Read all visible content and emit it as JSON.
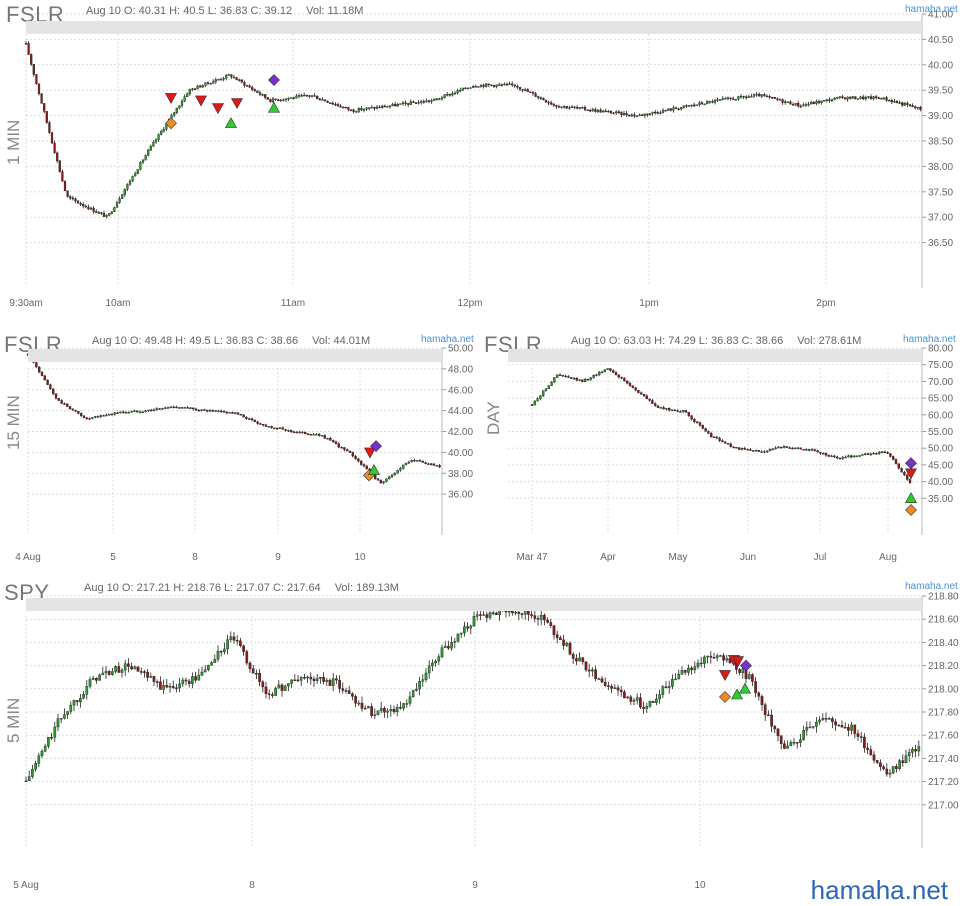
{
  "brand": "hamaha.net",
  "legend": [
    {
      "label": "Open",
      "shape": "diamond",
      "color": "#f08a24"
    },
    {
      "label": "Close",
      "shape": "diamond",
      "color": "#7b2fd0"
    },
    {
      "label": "BUY",
      "shape": "up",
      "color": "#2ecc2e"
    },
    {
      "label": "SELL",
      "shape": "down",
      "color": "#e01818"
    }
  ],
  "panels": {
    "p1": {
      "ticker": "FSLR",
      "ohlc": "Aug 10 O: 40.31 H: 40.5 L: 36.83 C: 39.12",
      "vol": "Vol: 11.18M",
      "timeframe": "1 MIN",
      "brand": "hamaha.net"
    },
    "p2": {
      "ticker": "FSLR",
      "ohlc": "Aug 10 O: 49.48 H: 49.5 L: 36.83 C: 38.66",
      "vol": "Vol: 44.01M",
      "timeframe": "15 MIN",
      "brand": "hamaha.net"
    },
    "p3": {
      "ticker": "FSLR",
      "ohlc": "Aug 10 O: 63.03 H: 74.29 L: 36.83 C: 38.66",
      "vol": "Vol: 278.61M",
      "timeframe": "DAY",
      "brand": "hamaha.net"
    },
    "p4": {
      "ticker": "SPY",
      "ohlc": "Aug 10 O: 217.21 H: 218.76 L: 217.07 C: 217.64",
      "vol": "Vol: 189.13M",
      "timeframe": "5 MIN",
      "brand": "hamaha.net"
    }
  },
  "chart_data": [
    {
      "id": "p1",
      "type": "candlestick",
      "ticker": "FSLR",
      "timeframe": "1 MIN",
      "ylim": [
        36.0,
        41.0
      ],
      "yticks": [
        "36.50",
        "37.00",
        "37.50",
        "38.00",
        "38.50",
        "39.00",
        "39.50",
        "40.00",
        "40.50",
        "41.00"
      ],
      "xticks": [
        "9:30am",
        "10am",
        "11am",
        "12pm",
        "1pm",
        "2pm"
      ],
      "price_path": [
        {
          "x": "9:30am",
          "y": 40.4
        },
        {
          "x": "9:33",
          "y": 37.4
        },
        {
          "x": "9:37",
          "y": 37.0
        },
        {
          "x": "9:45",
          "y": 38.3
        },
        {
          "x": "9:55",
          "y": 39.5
        },
        {
          "x": "10:00",
          "y": 39.8
        },
        {
          "x": "10:10",
          "y": 39.3
        },
        {
          "x": "10:20",
          "y": 39.4
        },
        {
          "x": "10:30",
          "y": 39.1
        },
        {
          "x": "10:40",
          "y": 39.2
        },
        {
          "x": "10:50",
          "y": 39.3
        },
        {
          "x": "11:00",
          "y": 39.6
        },
        {
          "x": "11:10",
          "y": 39.6
        },
        {
          "x": "11:30",
          "y": 39.2
        },
        {
          "x": "12:00",
          "y": 39.1
        },
        {
          "x": "12:15",
          "y": 39.0
        },
        {
          "x": "12:30",
          "y": 39.15
        },
        {
          "x": "1:00pm",
          "y": 39.3
        },
        {
          "x": "1:20",
          "y": 39.4
        },
        {
          "x": "1:40",
          "y": 39.2
        },
        {
          "x": "2:00pm",
          "y": 39.35
        },
        {
          "x": "2:15",
          "y": 39.35
        },
        {
          "x": "2:30",
          "y": 39.12
        }
      ],
      "markers": [
        {
          "kind": "Open",
          "x": "10:15",
          "y": 38.85
        },
        {
          "kind": "SELL",
          "x": "10:15",
          "y": 39.35
        },
        {
          "kind": "SELL",
          "x": "10:25",
          "y": 39.3
        },
        {
          "kind": "SELL",
          "x": "10:30",
          "y": 39.15
        },
        {
          "kind": "BUY",
          "x": "10:35",
          "y": 38.85
        },
        {
          "kind": "SELL",
          "x": "10:37",
          "y": 39.25
        },
        {
          "kind": "BUY",
          "x": "10:52",
          "y": 39.15
        },
        {
          "kind": "Close",
          "x": "10:52",
          "y": 39.7
        }
      ]
    },
    {
      "id": "p2",
      "type": "candlestick",
      "ticker": "FSLR",
      "timeframe": "15 MIN",
      "ylim": [
        34.0,
        50.0
      ],
      "yticks": [
        "36.00",
        "38.00",
        "40.00",
        "42.00",
        "44.00",
        "46.00",
        "48.00",
        "50.00"
      ],
      "xticks": [
        "4 Aug",
        "5",
        "8",
        "9",
        "10"
      ],
      "price_path": [
        {
          "x": "4 Aug",
          "y": 49.4
        },
        {
          "x": "4 Aug+",
          "y": 45.0
        },
        {
          "x": "4 Aug mid",
          "y": 43.2
        },
        {
          "x": "5",
          "y": 43.8
        },
        {
          "x": "5 mid",
          "y": 44.0
        },
        {
          "x": "8",
          "y": 44.4
        },
        {
          "x": "8 mid",
          "y": 44.0
        },
        {
          "x": "9",
          "y": 43.8
        },
        {
          "x": "9+",
          "y": 42.6
        },
        {
          "x": "9 mid",
          "y": 42.0
        },
        {
          "x": "9 end",
          "y": 41.6
        },
        {
          "x": "10",
          "y": 39.8
        },
        {
          "x": "10 low",
          "y": 37.0
        },
        {
          "x": "10 mid",
          "y": 39.3
        },
        {
          "x": "10 end",
          "y": 38.6
        }
      ],
      "markers": [
        {
          "kind": "Open",
          "x": "10",
          "y": 37.8
        },
        {
          "kind": "BUY",
          "x": "10",
          "y": 38.3
        },
        {
          "kind": "SELL",
          "x": "10",
          "y": 40.0
        },
        {
          "kind": "Close",
          "x": "10",
          "y": 40.6
        }
      ]
    },
    {
      "id": "p3",
      "type": "candlestick",
      "ticker": "FSLR",
      "timeframe": "DAY",
      "ylim": [
        30.0,
        80.0
      ],
      "yticks": [
        "35.00",
        "40.00",
        "45.00",
        "50.00",
        "55.00",
        "60.00",
        "65.00",
        "70.00",
        "75.00",
        "80.00"
      ],
      "xticks": [
        "Mar 47",
        "Apr",
        "May",
        "Jun",
        "Jul",
        "Aug"
      ],
      "price_path": [
        {
          "x": "Mar",
          "y": 63.0
        },
        {
          "x": "Mar 10",
          "y": 72.0
        },
        {
          "x": "Mar 20",
          "y": 70.0
        },
        {
          "x": "Mar 30",
          "y": 74.0
        },
        {
          "x": "Apr",
          "y": 68.0
        },
        {
          "x": "Apr 10",
          "y": 62.0
        },
        {
          "x": "Apr 25",
          "y": 61.0
        },
        {
          "x": "May",
          "y": 54.0
        },
        {
          "x": "May 10",
          "y": 50.0
        },
        {
          "x": "May 20",
          "y": 49.0
        },
        {
          "x": "Jun",
          "y": 50.5
        },
        {
          "x": "Jun 15",
          "y": 49.5
        },
        {
          "x": "Jul",
          "y": 47.0
        },
        {
          "x": "Jul 15",
          "y": 48.0
        },
        {
          "x": "Aug",
          "y": 49.0
        },
        {
          "x": "Aug 10",
          "y": 38.66
        }
      ],
      "markers": [
        {
          "kind": "Open",
          "x": "Aug 10",
          "y": 31.5
        },
        {
          "kind": "BUY",
          "x": "Aug 10",
          "y": 35.0
        },
        {
          "kind": "SELL",
          "x": "Aug 10",
          "y": 42.5
        },
        {
          "kind": "Close",
          "x": "Aug 10",
          "y": 45.5
        }
      ]
    },
    {
      "id": "p4",
      "type": "candlestick",
      "ticker": "SPY",
      "timeframe": "5 MIN",
      "ylim": [
        216.8,
        218.8
      ],
      "yticks": [
        "217.00",
        "217.20",
        "217.40",
        "217.60",
        "217.80",
        "218.00",
        "218.20",
        "218.40",
        "218.60",
        "218.80"
      ],
      "xticks": [
        "5 Aug",
        "8",
        "9",
        "10"
      ],
      "price_path": [
        {
          "x": "5 Aug",
          "y": 217.2
        },
        {
          "x": "5 Aug+",
          "y": 217.75
        },
        {
          "x": "5 Aug a",
          "y": 218.1
        },
        {
          "x": "5 Aug b",
          "y": 218.2
        },
        {
          "x": "5 Aug c",
          "y": 218.0
        },
        {
          "x": "5 Aug d",
          "y": 218.1
        },
        {
          "x": "8",
          "y": 218.45
        },
        {
          "x": "8 a",
          "y": 217.95
        },
        {
          "x": "8 b",
          "y": 218.1
        },
        {
          "x": "8 c",
          "y": 218.05
        },
        {
          "x": "8 d",
          "y": 217.8
        },
        {
          "x": "8 e",
          "y": 217.85
        },
        {
          "x": "9",
          "y": 218.3
        },
        {
          "x": "9 a",
          "y": 218.6
        },
        {
          "x": "9 b",
          "y": 218.7
        },
        {
          "x": "9 c",
          "y": 218.6
        },
        {
          "x": "9 d",
          "y": 218.25
        },
        {
          "x": "9 e",
          "y": 218.0
        },
        {
          "x": "9 f",
          "y": 217.85
        },
        {
          "x": "9 g",
          "y": 218.15
        },
        {
          "x": "10",
          "y": 218.3
        },
        {
          "x": "10 a",
          "y": 218.1
        },
        {
          "x": "10 b",
          "y": 217.45
        },
        {
          "x": "10 c",
          "y": 217.75
        },
        {
          "x": "10 d",
          "y": 217.65
        },
        {
          "x": "10 e",
          "y": 217.25
        },
        {
          "x": "10 f",
          "y": 217.55
        }
      ],
      "markers": [
        {
          "kind": "Open",
          "x": "10",
          "y": 217.93
        },
        {
          "kind": "BUY",
          "x": "10",
          "y": 217.95
        },
        {
          "kind": "BUY",
          "x": "10",
          "y": 218.0
        },
        {
          "kind": "SELL",
          "x": "10",
          "y": 218.12
        },
        {
          "kind": "SELL",
          "x": "10",
          "y": 218.25
        },
        {
          "kind": "SELL",
          "x": "10",
          "y": 218.24
        },
        {
          "kind": "Close",
          "x": "10",
          "y": 218.2
        }
      ]
    }
  ]
}
